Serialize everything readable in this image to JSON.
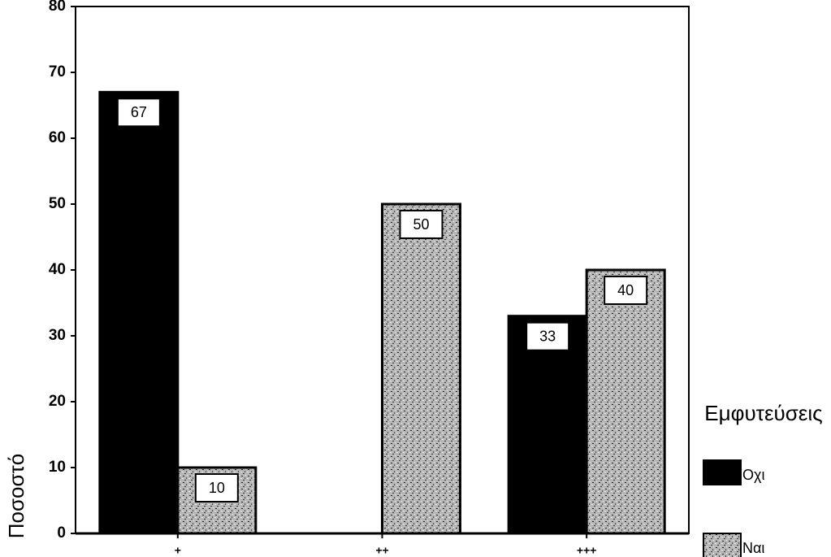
{
  "chart_data": {
    "type": "bar",
    "categories": [
      "+",
      "++",
      "+++"
    ],
    "series": [
      {
        "name": "Οχι",
        "color": "#000000",
        "values": [
          67,
          null,
          33
        ]
      },
      {
        "name": "Ναι",
        "color": "#b8b8b8",
        "values": [
          10,
          50,
          40
        ]
      }
    ],
    "y_label": "Ποσοστό",
    "legend_title": "Εμφυτεύσεις",
    "ylim": [
      0,
      80
    ],
    "yticks": [
      0,
      10,
      20,
      30,
      40,
      50,
      60,
      70,
      80
    ]
  }
}
